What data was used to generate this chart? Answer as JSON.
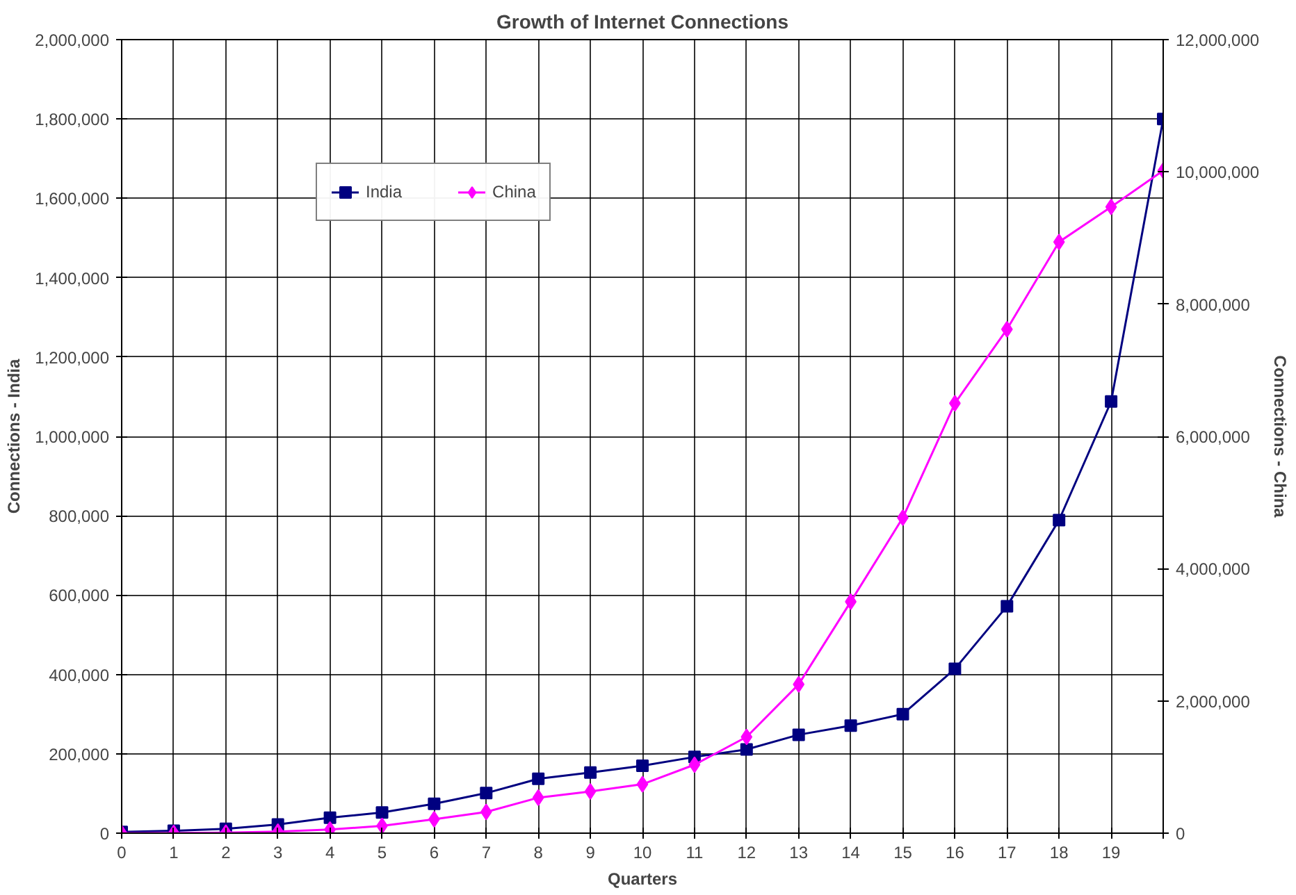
{
  "chart_data": {
    "type": "line",
    "title": "Growth of Internet Connections",
    "xlabel": "Quarters",
    "ylabel": "Connections - India",
    "y2label": "Connections - China",
    "x": [
      0,
      1,
      2,
      3,
      4,
      5,
      6,
      7,
      8,
      9,
      10,
      11,
      12,
      13,
      14,
      15,
      16,
      17,
      18,
      19,
      20
    ],
    "series": [
      {
        "name": "India",
        "color": "#000080",
        "marker": "square",
        "values": [
          3000,
          6000,
          11000,
          22000,
          39000,
          52000,
          74000,
          101000,
          137000,
          153000,
          170000,
          192000,
          211000,
          248000,
          271000,
          300000,
          414000,
          572000,
          789000,
          1088000,
          1800000
        ]
      },
      {
        "name": "China",
        "color": "#ff00ff",
        "marker": "diamond",
        "axis": "y2",
        "values": [
          0,
          2000,
          7000,
          23000,
          54000,
          110000,
          210000,
          320000,
          537000,
          630000,
          740000,
          1035000,
          1455000,
          2250000,
          3500000,
          4770000,
          6500000,
          7620000,
          8940000,
          9470000,
          10020000
        ]
      }
    ],
    "xlim": [
      0,
      20
    ],
    "xticks": [
      0,
      1,
      2,
      3,
      4,
      5,
      6,
      7,
      8,
      9,
      10,
      11,
      12,
      13,
      14,
      15,
      16,
      17,
      18,
      19,
      {
        "value": 20,
        "label": null
      }
    ],
    "ylim": [
      0,
      2000000
    ],
    "yticks": [
      {
        "value": 0,
        "label": "0"
      },
      {
        "value": 200000,
        "label": "200,000"
      },
      {
        "value": 400000,
        "label": "400,000"
      },
      {
        "value": 600000,
        "label": "600,000"
      },
      {
        "value": 800000,
        "label": "800,000"
      },
      {
        "value": 1000000,
        "label": "1,000,000"
      },
      {
        "value": 1200000,
        "label": "1,200,000"
      },
      {
        "value": 1400000,
        "label": "1,400,000"
      },
      {
        "value": 1600000,
        "label": "1,600,000"
      },
      {
        "value": 1800000,
        "label": "1,800,000"
      },
      {
        "value": 2000000,
        "label": "2,000,000"
      }
    ],
    "y2lim": [
      0,
      12000000
    ],
    "y2ticks": [
      {
        "value": 0,
        "label": "0"
      },
      {
        "value": 2000000,
        "label": "2,000,000"
      },
      {
        "value": 4000000,
        "label": "4,000,000"
      },
      {
        "value": 6000000,
        "label": "6,000,000"
      },
      {
        "value": 8000000,
        "label": "8,000,000"
      },
      {
        "value": 10000000,
        "label": "10,000,000"
      },
      {
        "value": 12000000,
        "label": "12,000,000"
      }
    ],
    "grid": true,
    "legend": "top left",
    "line_style": "solid"
  }
}
